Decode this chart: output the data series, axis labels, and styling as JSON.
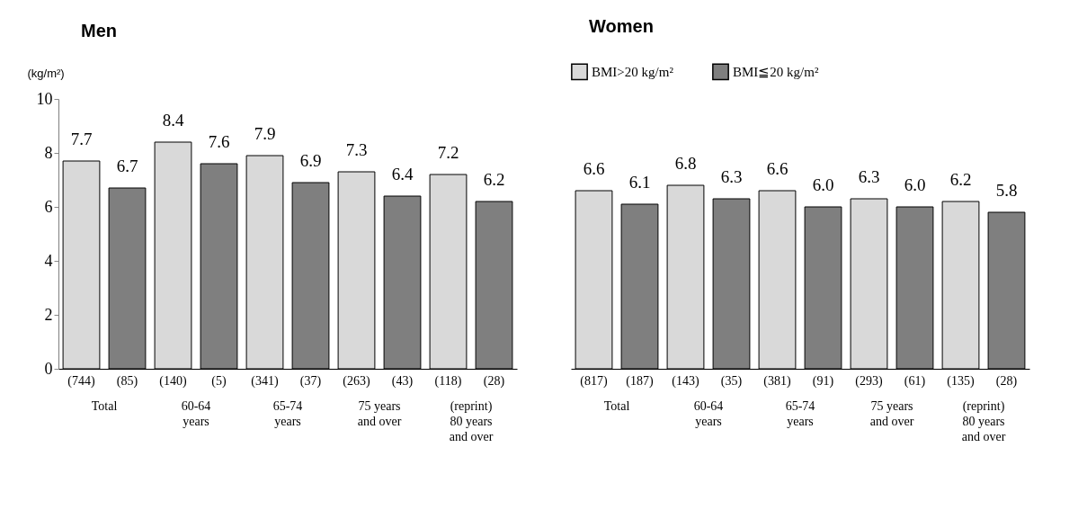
{
  "chart_data": [
    {
      "type": "bar",
      "title": "Men",
      "ylabel": "(kg/m²)",
      "categories": [
        "(744)",
        "(85)",
        "(140)",
        "(5)",
        "(341)",
        "(37)",
        "(263)",
        "(43)",
        "(118)",
        "(28)"
      ],
      "series": [
        {
          "color": "#d9d9d9",
          "values": [
            7.7,
            null,
            8.4,
            null,
            7.9,
            null,
            7.3,
            null,
            7.2,
            null
          ]
        },
        {
          "color": "#7f7f7f",
          "values": [
            null,
            6.7,
            null,
            7.6,
            null,
            6.9,
            null,
            6.4,
            null,
            6.2
          ]
        }
      ],
      "ylim": [
        0,
        10
      ],
      "yticks": [
        0,
        2,
        4,
        6,
        8,
        10
      ],
      "data_labels": true,
      "grid": false,
      "legend": false,
      "annotations": [
        "Total",
        "60-64\nyears",
        "65-74\nyears",
        "75 years\nand over",
        "(reprint)\n80 years\nand over"
      ]
    },
    {
      "type": "bar",
      "title": "Women",
      "categories": [
        "(817)",
        "(187)",
        "(143)",
        "(35)",
        "(381)",
        "(91)",
        "(293)",
        "(61)",
        "(135)",
        "(28)"
      ],
      "series": [
        {
          "name": "BMI>20 kg/m²",
          "color": "#d9d9d9",
          "values": [
            6.6,
            null,
            6.8,
            null,
            6.6,
            null,
            6.3,
            null,
            6.2,
            null
          ],
          "value_labels": [
            "6.6",
            null,
            "6.8",
            null,
            "6.6",
            null,
            "6.3",
            null,
            "6.2",
            null
          ]
        },
        {
          "name": "BMI≦20 kg/m²",
          "color": "#7f7f7f",
          "values": [
            null,
            6.1,
            null,
            6.3,
            null,
            6.0,
            null,
            6.0,
            null,
            5.8
          ],
          "value_labels": [
            null,
            "6.1",
            null,
            "6.3",
            null,
            "6.0",
            null,
            "6.0",
            null,
            "5.8"
          ]
        }
      ],
      "ylim": [
        0,
        10
      ],
      "tick_labels": "x",
      "grid": false,
      "legend": "top",
      "annotations": [
        "Total",
        "60-64\nyears",
        "65-74\nyears",
        "75 years\nand over",
        "(reprint)\n80 years\nand over"
      ]
    }
  ]
}
